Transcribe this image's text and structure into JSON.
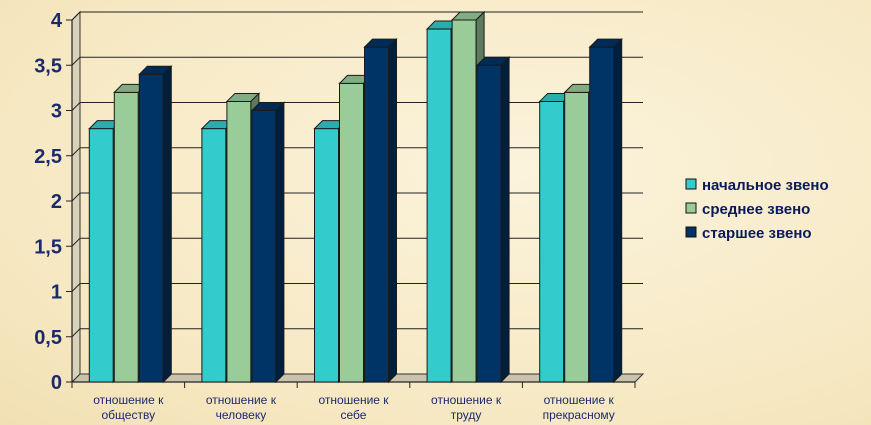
{
  "chart_data": {
    "type": "bar",
    "categories": [
      [
        "отношение к",
        "обществу"
      ],
      [
        "отношение к",
        "человеку"
      ],
      [
        "отношение к",
        "себе"
      ],
      [
        "отношение к",
        "труду"
      ],
      [
        "отношение к",
        "прекрасному"
      ]
    ],
    "series": [
      {
        "name": "начальное звено",
        "color": "#33cccc",
        "values": [
          2.8,
          2.8,
          2.8,
          3.9,
          3.1
        ]
      },
      {
        "name": "среднее звено",
        "color": "#99cc99",
        "values": [
          3.2,
          3.1,
          3.3,
          4.0,
          3.2
        ]
      },
      {
        "name": "старшее звено",
        "color": "#003366",
        "values": [
          3.4,
          3.0,
          3.7,
          3.5,
          3.7
        ]
      }
    ],
    "yticks": [
      "0",
      "0,5",
      "1",
      "1,5",
      "2",
      "2,5",
      "3",
      "3,5",
      "4"
    ],
    "ylim": [
      0,
      4
    ],
    "grid": true,
    "legend_position": "right",
    "title": "",
    "xlabel": "",
    "ylabel": ""
  }
}
